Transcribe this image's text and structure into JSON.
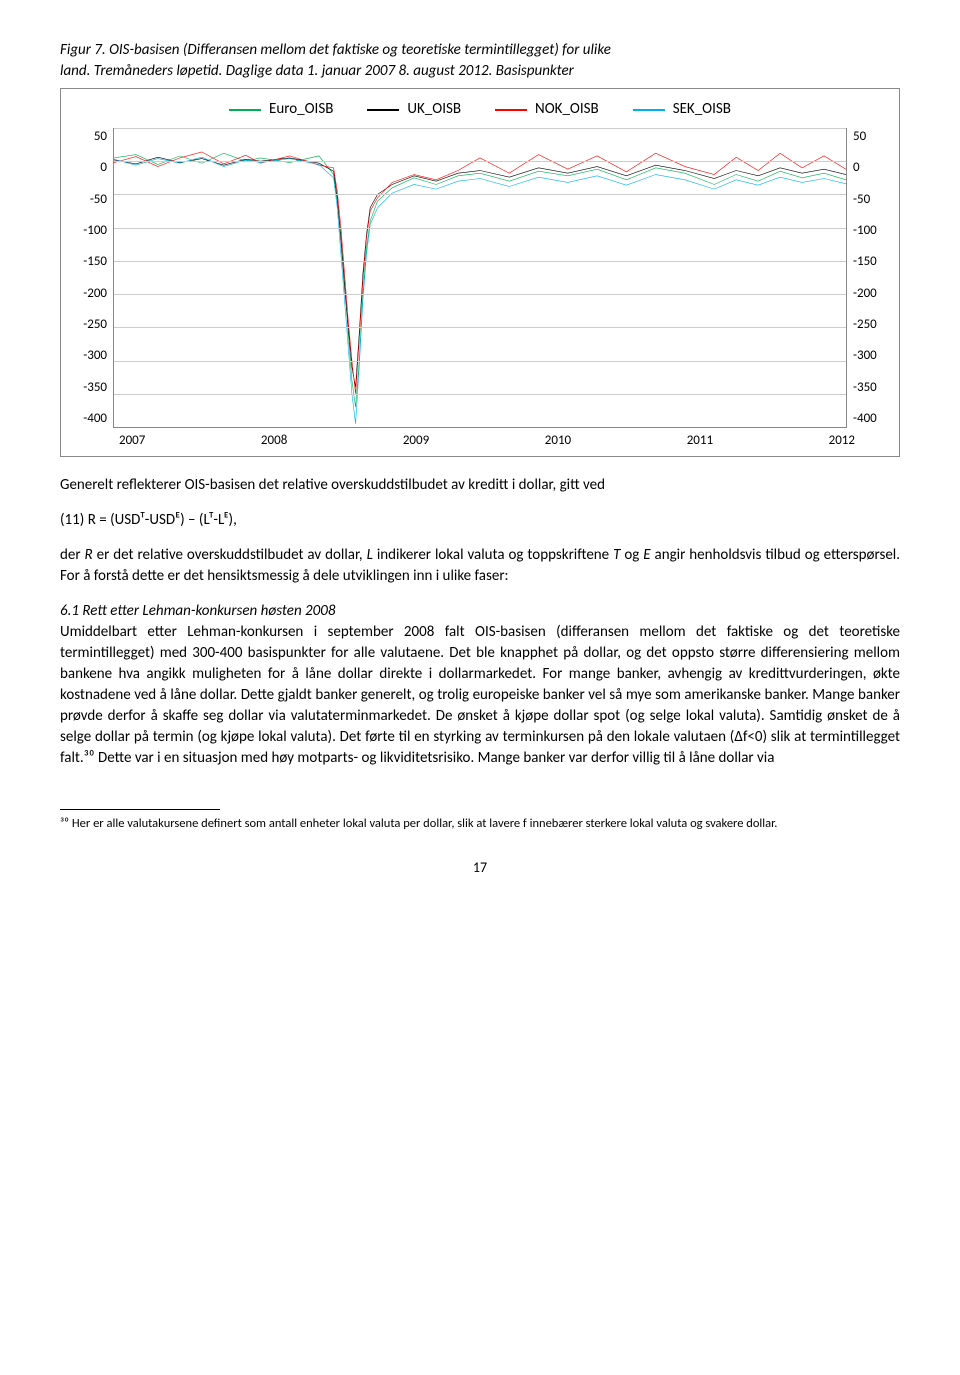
{
  "figure": {
    "caption_line1": "Figur 7. OIS-basisen (Differansen mellom det faktiske og teoretiske termintillegget) for ulike",
    "caption_line2": "land. Tremåneders løpetid. Daglige data 1. januar 2007 8. august 2012. Basispunkter"
  },
  "chart": {
    "type": "line",
    "legend": [
      {
        "label": "Euro_OISB",
        "color": "#00b050"
      },
      {
        "label": "UK_OISB",
        "color": "#000000"
      },
      {
        "label": "NOK_OISB",
        "color": "#ff0000"
      },
      {
        "label": "SEK_OISB",
        "color": "#00b0f0"
      }
    ],
    "ylim": [
      -400,
      50
    ],
    "yticks": [
      50,
      0,
      -50,
      -100,
      -150,
      -200,
      -250,
      -300,
      -350,
      -400
    ],
    "xticks": [
      "2007",
      "2008",
      "2009",
      "2010",
      "2011",
      "2012"
    ],
    "background_color": "#ffffff",
    "grid_color": "#cccccc",
    "series": {
      "Euro_OISB": [
        [
          0,
          5
        ],
        [
          3,
          10
        ],
        [
          6,
          -5
        ],
        [
          9,
          8
        ],
        [
          12,
          -3
        ],
        [
          15,
          12
        ],
        [
          18,
          0
        ],
        [
          20,
          5
        ],
        [
          24,
          -2
        ],
        [
          28,
          8
        ],
        [
          30,
          -20
        ],
        [
          30.5,
          -60
        ],
        [
          31,
          -110
        ],
        [
          31.5,
          -180
        ],
        [
          32,
          -260
        ],
        [
          32.5,
          -330
        ],
        [
          33,
          -370
        ],
        [
          33.5,
          -300
        ],
        [
          34,
          -200
        ],
        [
          34.5,
          -130
        ],
        [
          35,
          -90
        ],
        [
          36,
          -60
        ],
        [
          38,
          -40
        ],
        [
          41,
          -25
        ],
        [
          44,
          -35
        ],
        [
          47,
          -22
        ],
        [
          50,
          -18
        ],
        [
          54,
          -30
        ],
        [
          58,
          -15
        ],
        [
          62,
          -22
        ],
        [
          66,
          -12
        ],
        [
          70,
          -28
        ],
        [
          74,
          -10
        ],
        [
          78,
          -18
        ],
        [
          82,
          -35
        ],
        [
          85,
          -20
        ],
        [
          88,
          -30
        ],
        [
          91,
          -15
        ],
        [
          94,
          -25
        ],
        [
          97,
          -18
        ],
        [
          100,
          -28
        ]
      ],
      "UK_OISB": [
        [
          0,
          2
        ],
        [
          3,
          -4
        ],
        [
          6,
          6
        ],
        [
          9,
          -2
        ],
        [
          12,
          4
        ],
        [
          15,
          -6
        ],
        [
          18,
          3
        ],
        [
          20,
          0
        ],
        [
          24,
          5
        ],
        [
          28,
          -3
        ],
        [
          30,
          -15
        ],
        [
          30.5,
          -55
        ],
        [
          31,
          -120
        ],
        [
          31.5,
          -190
        ],
        [
          32,
          -250
        ],
        [
          32.5,
          -310
        ],
        [
          33,
          -340
        ],
        [
          33.5,
          -260
        ],
        [
          34,
          -170
        ],
        [
          34.5,
          -110
        ],
        [
          35,
          -70
        ],
        [
          36,
          -50
        ],
        [
          38,
          -35
        ],
        [
          41,
          -22
        ],
        [
          44,
          -30
        ],
        [
          47,
          -18
        ],
        [
          50,
          -14
        ],
        [
          54,
          -24
        ],
        [
          58,
          -10
        ],
        [
          62,
          -18
        ],
        [
          66,
          -8
        ],
        [
          70,
          -22
        ],
        [
          74,
          -6
        ],
        [
          78,
          -14
        ],
        [
          82,
          -26
        ],
        [
          85,
          -14
        ],
        [
          88,
          -22
        ],
        [
          91,
          -10
        ],
        [
          94,
          -18
        ],
        [
          97,
          -12
        ],
        [
          100,
          -20
        ]
      ],
      "NOK_OISB": [
        [
          0,
          -2
        ],
        [
          3,
          7
        ],
        [
          6,
          -8
        ],
        [
          9,
          5
        ],
        [
          12,
          14
        ],
        [
          15,
          -4
        ],
        [
          18,
          9
        ],
        [
          20,
          -3
        ],
        [
          24,
          8
        ],
        [
          28,
          -6
        ],
        [
          30,
          -10
        ],
        [
          30.5,
          -45
        ],
        [
          31,
          -100
        ],
        [
          31.5,
          -170
        ],
        [
          32,
          -240
        ],
        [
          32.5,
          -300
        ],
        [
          33,
          -350
        ],
        [
          33.5,
          -270
        ],
        [
          34,
          -180
        ],
        [
          34.5,
          -115
        ],
        [
          35,
          -75
        ],
        [
          36,
          -55
        ],
        [
          38,
          -32
        ],
        [
          41,
          -20
        ],
        [
          44,
          -28
        ],
        [
          47,
          -14
        ],
        [
          50,
          5
        ],
        [
          54,
          -18
        ],
        [
          58,
          10
        ],
        [
          62,
          -12
        ],
        [
          66,
          8
        ],
        [
          70,
          -16
        ],
        [
          74,
          12
        ],
        [
          78,
          -8
        ],
        [
          82,
          -20
        ],
        [
          85,
          6
        ],
        [
          88,
          -14
        ],
        [
          91,
          12
        ],
        [
          94,
          -10
        ],
        [
          97,
          8
        ],
        [
          100,
          -12
        ]
      ],
      "SEK_OISB": [
        [
          0,
          3
        ],
        [
          3,
          -6
        ],
        [
          6,
          4
        ],
        [
          9,
          -3
        ],
        [
          12,
          6
        ],
        [
          15,
          -8
        ],
        [
          18,
          2
        ],
        [
          20,
          -2
        ],
        [
          24,
          4
        ],
        [
          28,
          -5
        ],
        [
          30,
          -25
        ],
        [
          30.5,
          -70
        ],
        [
          31,
          -140
        ],
        [
          31.5,
          -210
        ],
        [
          32,
          -280
        ],
        [
          32.5,
          -350
        ],
        [
          33,
          -395
        ],
        [
          33.5,
          -310
        ],
        [
          34,
          -210
        ],
        [
          34.5,
          -140
        ],
        [
          35,
          -95
        ],
        [
          36,
          -70
        ],
        [
          38,
          -48
        ],
        [
          41,
          -35
        ],
        [
          44,
          -42
        ],
        [
          47,
          -30
        ],
        [
          50,
          -26
        ],
        [
          54,
          -38
        ],
        [
          58,
          -24
        ],
        [
          62,
          -32
        ],
        [
          66,
          -22
        ],
        [
          70,
          -36
        ],
        [
          74,
          -20
        ],
        [
          78,
          -28
        ],
        [
          82,
          -42
        ],
        [
          85,
          -28
        ],
        [
          88,
          -36
        ],
        [
          91,
          -24
        ],
        [
          94,
          -32
        ],
        [
          97,
          -26
        ],
        [
          100,
          -34
        ]
      ]
    }
  },
  "text": {
    "para_after_chart": "Generelt reflekterer OIS-basisen det relative overskuddstilbudet av kreditt i dollar, gitt ved",
    "equation": "(11) R = (USDᵀ-USDᴱ) – (Lᵀ-Lᴱ),",
    "para_desc1": "der R er det relative overskuddstilbudet av dollar, L indikerer lokal valuta og toppskriftene T og E angir henholdsvis tilbud og etterspørsel. For å forstå dette er det hensiktsmessig å dele utviklingen inn i ulike faser:",
    "section_title": "6.1 Rett etter Lehman-konkursen høsten 2008",
    "para_main": "Umiddelbart etter Lehman-konkursen i september 2008 falt OIS-basisen (differansen mellom det faktiske og det teoretiske termintillegget) med 300-400 basispunkter for alle valutaene. Det ble knapphet på dollar, og det oppsto større differensiering mellom bankene hva angikk muligheten for å låne dollar direkte i dollarmarkedet. For mange banker, avhengig av kredittvurderingen, økte kostnadene ved å låne dollar. Dette gjaldt banker generelt, og trolig europeiske banker vel så mye som amerikanske banker. Mange banker prøvde derfor å skaffe seg dollar via valutaterminmarkedet. De ønsket å kjøpe dollar spot (og selge lokal valuta). Samtidig ønsket de å selge dollar på termin (og kjøpe lokal valuta). Det førte til en styrking av terminkursen på den lokale valutaen (Δf<0) slik at termintillegget falt.³⁰ Dette var i en situasjon med høy motparts- og likviditetsrisiko. Mange banker var derfor villig til å låne dollar via",
    "footnote": "³⁰ Her er alle valutakursene definert som antall enheter lokal valuta per dollar, slik at lavere f innebærer sterkere lokal valuta og svakere dollar.",
    "page_number": "17"
  }
}
